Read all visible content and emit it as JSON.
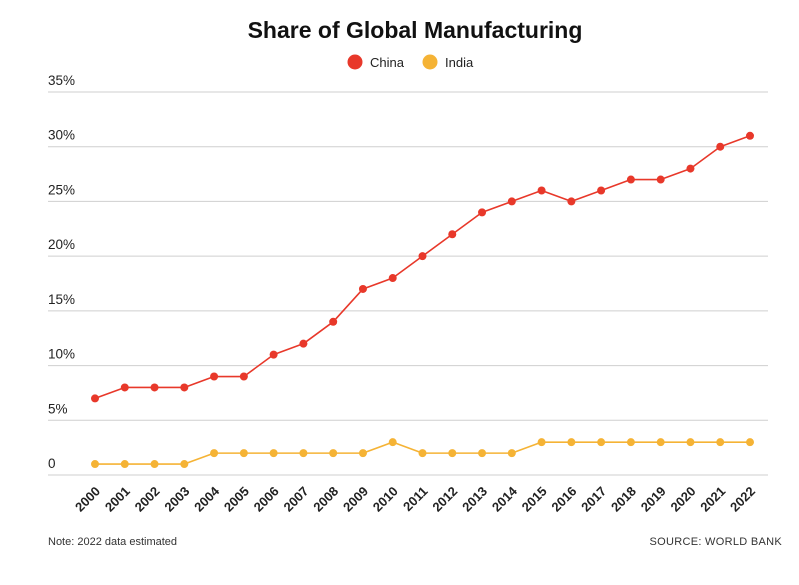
{
  "chart_data": {
    "type": "line",
    "title": "Share of Global Manufacturing",
    "categories": [
      "2000",
      "2001",
      "2002",
      "2003",
      "2004",
      "2005",
      "2006",
      "2007",
      "2008",
      "2009",
      "2010",
      "2011",
      "2012",
      "2013",
      "2014",
      "2015",
      "2016",
      "2017",
      "2018",
      "2019",
      "2020",
      "2021",
      "2022"
    ],
    "series": [
      {
        "name": "China",
        "color": "#e8382a",
        "values": [
          7,
          8,
          8,
          8,
          9,
          9,
          11,
          12,
          14,
          17,
          18,
          20,
          22,
          24,
          25,
          26,
          25,
          26,
          27,
          27,
          28,
          30,
          31
        ]
      },
      {
        "name": "India",
        "color": "#f5b335",
        "values": [
          1,
          1,
          1,
          1,
          2,
          2,
          2,
          2,
          2,
          2,
          3,
          2,
          2,
          2,
          2,
          3,
          3,
          3,
          3,
          3,
          3,
          3,
          3
        ]
      }
    ],
    "ylim": [
      0,
      35
    ],
    "yticks": [
      {
        "value": 0,
        "label": "0"
      },
      {
        "value": 5,
        "label": "5%"
      },
      {
        "value": 10,
        "label": "10%"
      },
      {
        "value": 15,
        "label": "15%"
      },
      {
        "value": 20,
        "label": "20%"
      },
      {
        "value": 25,
        "label": "25%"
      },
      {
        "value": 30,
        "label": "30%"
      },
      {
        "value": 35,
        "label": "35%"
      }
    ],
    "xlabel": "",
    "ylabel": "",
    "grid": true,
    "legend_position": "top-center"
  },
  "footer": {
    "note": "Note: 2022 data estimated",
    "source": "SOURCE: WORLD BANK"
  }
}
